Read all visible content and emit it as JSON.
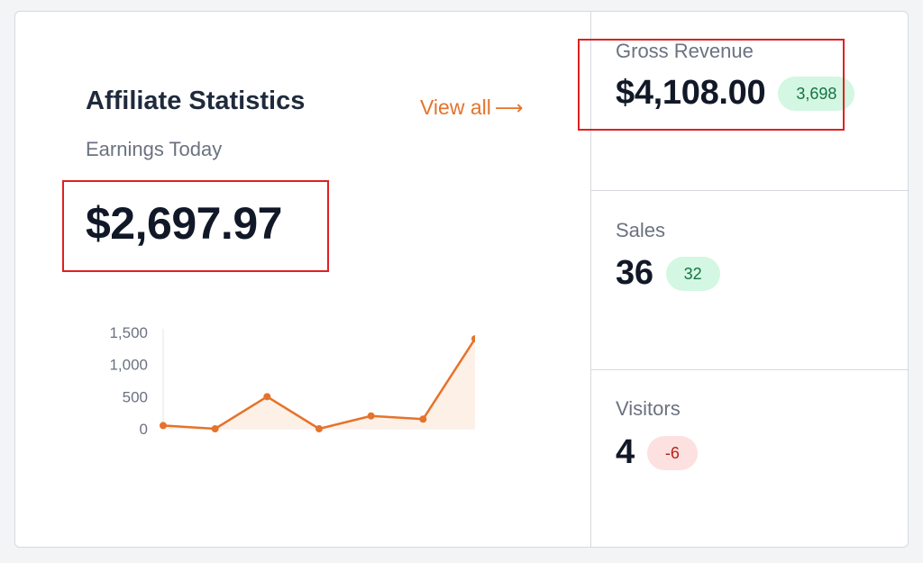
{
  "affiliate": {
    "title": "Affiliate Statistics",
    "view_all_label": "View all",
    "view_all_arrow": "⟶",
    "earnings_label": "Earnings Today",
    "earnings_value": "$2,697.97"
  },
  "chart_data": {
    "type": "area",
    "x": [
      1,
      2,
      3,
      4,
      5,
      6,
      7
    ],
    "series": [
      {
        "values": [
          50,
          0,
          500,
          0,
          200,
          150,
          1400
        ]
      }
    ],
    "yticks": [
      "1,500",
      "1,000",
      "500",
      "0"
    ],
    "ytick_values": [
      1500,
      1000,
      500,
      0
    ],
    "ylim": [
      0,
      1500
    ],
    "title": "",
    "xlabel": "",
    "ylabel": "",
    "colors": {
      "line": "#e5732b",
      "fill": "#fdf0e7"
    },
    "grid": false
  },
  "stats": [
    {
      "label": "Gross Revenue",
      "value": "$4,108.00",
      "badge": "3,698",
      "trend": "up"
    },
    {
      "label": "Sales",
      "value": "36",
      "badge": "32",
      "trend": "up"
    },
    {
      "label": "Visitors",
      "value": "4",
      "badge": "-6",
      "trend": "down"
    }
  ],
  "colors": {
    "accent": "#e5732b",
    "positive_bg": "#d3f7e2",
    "negative_bg": "#fde0e0",
    "highlight_box": "#e02020"
  }
}
